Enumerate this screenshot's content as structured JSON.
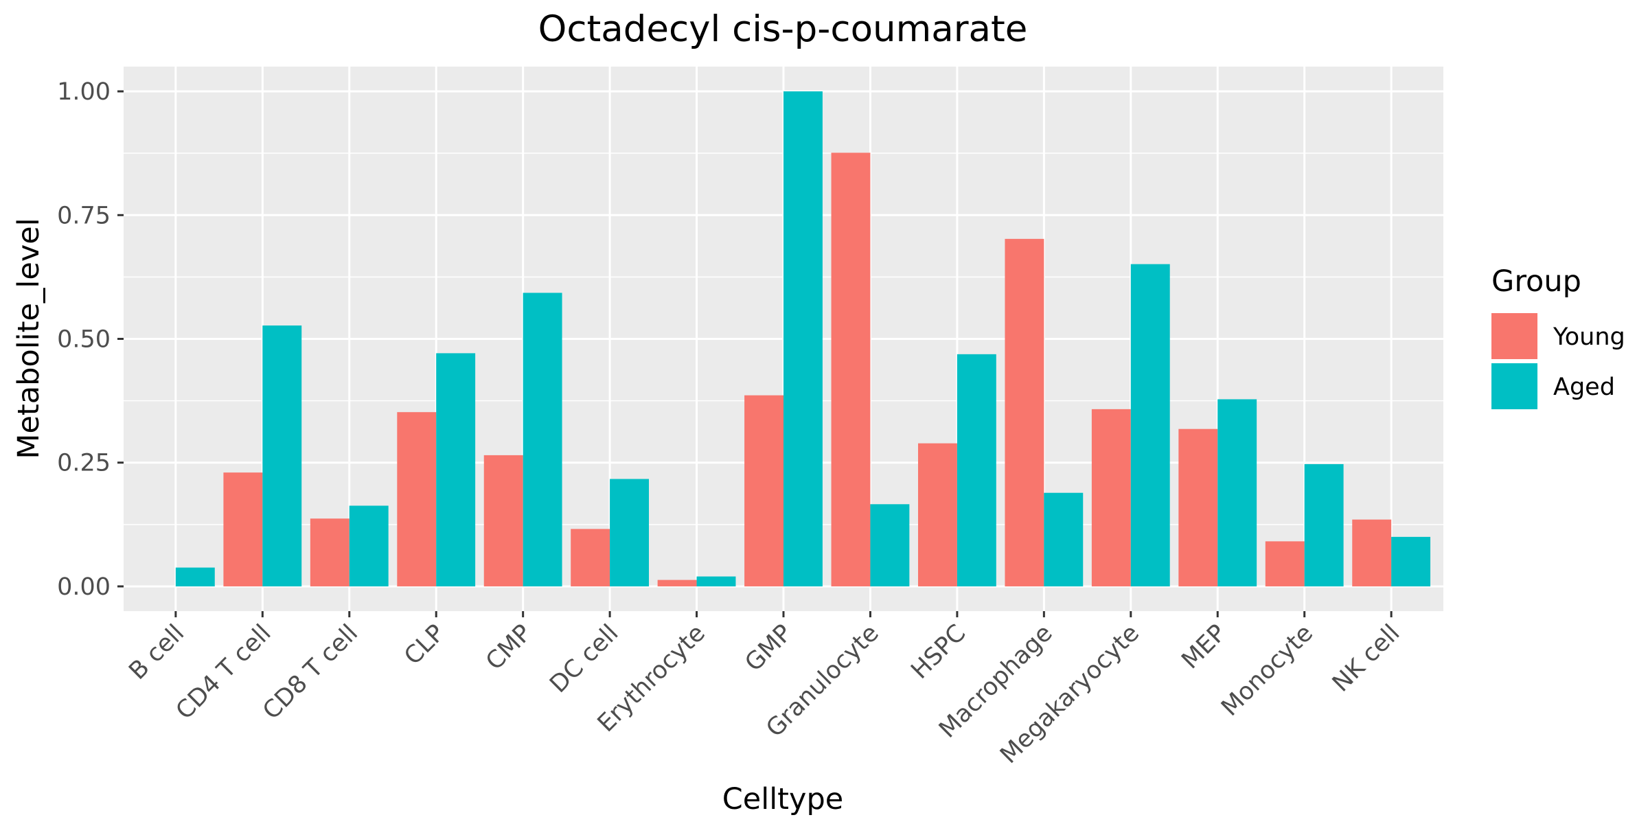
{
  "chart_data": {
    "type": "bar",
    "title": "Octadecyl cis-p-coumarate",
    "xlabel": "Celltype",
    "ylabel": "Metabolite_level",
    "ylim": [
      -0.05,
      1.05
    ],
    "yticks": [
      "0.00",
      "0.25",
      "0.50",
      "0.75",
      "1.00"
    ],
    "ytick_values": [
      0,
      0.25,
      0.5,
      0.75,
      1.0
    ],
    "grid": true,
    "legend": {
      "title": "Group",
      "position": "right"
    },
    "categories": [
      "B cell",
      "CD4 T cell",
      "CD8 T cell",
      "CLP",
      "CMP",
      "DC cell",
      "Erythrocyte",
      "GMP",
      "Granulocyte",
      "HSPC",
      "Macrophage",
      "Megakaryocyte",
      "MEP",
      "Monocyte",
      "NK cell"
    ],
    "series": [
      {
        "name": "Young",
        "color": "#F8766D",
        "values": [
          0.0,
          0.23,
          0.137,
          0.352,
          0.265,
          0.116,
          0.013,
          0.386,
          0.876,
          0.289,
          0.702,
          0.358,
          0.318,
          0.091,
          0.135
        ]
      },
      {
        "name": "Aged",
        "color": "#00BFC4",
        "values": [
          0.038,
          0.527,
          0.163,
          0.471,
          0.593,
          0.217,
          0.02,
          1.0,
          0.166,
          0.469,
          0.189,
          0.651,
          0.378,
          0.247,
          0.1
        ]
      }
    ]
  }
}
